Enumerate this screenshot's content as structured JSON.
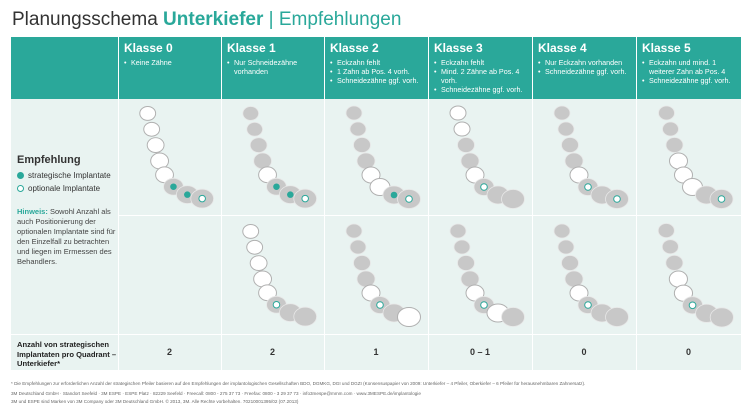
{
  "title": {
    "part1": "Planungsschema ",
    "part2": "Unterkiefer",
    "part3": " | Empfehlungen"
  },
  "colors": {
    "accent": "#2aa89a",
    "cell_bg": "#e9f3f1",
    "tooth": "#c8c8c8"
  },
  "columns": [
    {
      "label": "Klasse 0",
      "bullets": [
        "Keine Zähne"
      ],
      "count": "2"
    },
    {
      "label": "Klasse 1",
      "bullets": [
        "Nur Schneidezähne vorhanden"
      ],
      "count": "2"
    },
    {
      "label": "Klasse 2",
      "bullets": [
        "Eckzahn fehlt",
        "1 Zahn ab Pos. 4 vorh.",
        "Schneidezähne ggf. vorh."
      ],
      "count": "1"
    },
    {
      "label": "Klasse 3",
      "bullets": [
        "Eckzahn fehlt",
        "Mind. 2 Zähne ab Pos. 4 vorh.",
        "Schneidezähne ggf. vorh."
      ],
      "count": "0 – 1"
    },
    {
      "label": "Klasse 4",
      "bullets": [
        "Nur Eckzahn vorhanden",
        "Schneidezähne ggf. vorh."
      ],
      "count": "0"
    },
    {
      "label": "Klasse 5",
      "bullets": [
        "Eckzahn und mind. 1 weiterer Zahn ab Pos. 4",
        "Schneidezähne ggf. vorh."
      ],
      "count": "0"
    }
  ],
  "legend": {
    "title": "Empfehlung",
    "strategic": "strategische Implantate",
    "optional": "optionale Implantate",
    "hint_label": "Hinweis:",
    "hint_text": "Sowohl Anzahl als auch Positionierung der optionalen Implantate sind für den Einzelfall zu betrachten und liegen im Ermessen des Behandlers."
  },
  "footer_row_label": "Anzahl von strategischen Implantaten pro Quadrant – Unterkiefer*",
  "footnotes": [
    "* Die Empfehlungen zur erforderlichen Anzahl der strategischen Pfeiler basieren auf den Empfehlungen der implantologischen Gesellschaften BDO, DGMKG, DGI und DGZI (Konsensuspapier von 2009: Unterkiefer – 4 Pfeiler, Oberkiefer – 6 Pfeiler für herausnehmbaren Zahnersatz).",
    "3M Deutschland GmbH · Standort Seefeld · 3M ESPE · ESPE Platz · 82229 Seefeld · Freecall: 0800 - 275 37 73 · Freefax: 0800 - 3 29 37 73 · info3mespe@mmm.com · www.3MESPE.de/implantologie",
    "3M und ESPE sind Marken von 3M Company oder 3M Deutschland GmbH. © 2013, 3M. Alle Rechte vorbehalten. 70210001395/02 (07.2013)"
  ],
  "diagrams": [
    {
      "top": {
        "teeth": [
          "n",
          "n",
          "n",
          "n",
          "n",
          "s",
          "s",
          "o"
        ]
      },
      "bottom": null
    },
    {
      "top": {
        "teeth": [
          "t",
          "t",
          "t",
          "t",
          "n",
          "s",
          "s",
          "o"
        ]
      },
      "bottom": {
        "teeth": [
          "n",
          "n",
          "n",
          "n",
          "n",
          "o",
          "t",
          "t"
        ]
      }
    },
    {
      "top": {
        "teeth": [
          "t",
          "t",
          "t",
          "t",
          "n",
          "n",
          "s",
          "o"
        ]
      },
      "bottom": {
        "teeth": [
          "t",
          "t",
          "t",
          "t",
          "n",
          "o",
          "t",
          "n"
        ]
      }
    },
    {
      "top": {
        "teeth": [
          "n",
          "n",
          "t",
          "t",
          "n",
          "o",
          "t",
          "t"
        ]
      },
      "bottom": {
        "teeth": [
          "t",
          "t",
          "t",
          "t",
          "n",
          "o",
          "n",
          "t"
        ]
      }
    },
    {
      "top": {
        "teeth": [
          "t",
          "t",
          "t",
          "t",
          "n",
          "o",
          "t",
          "o"
        ]
      },
      "bottom": {
        "teeth": [
          "t",
          "t",
          "t",
          "t",
          "n",
          "o",
          "t",
          "t"
        ]
      }
    },
    {
      "top": {
        "teeth": [
          "t",
          "t",
          "t",
          "n",
          "n",
          "n",
          "t",
          "o"
        ]
      },
      "bottom": {
        "teeth": [
          "t",
          "t",
          "t",
          "n",
          "n",
          "o",
          "t",
          "t"
        ]
      }
    }
  ]
}
